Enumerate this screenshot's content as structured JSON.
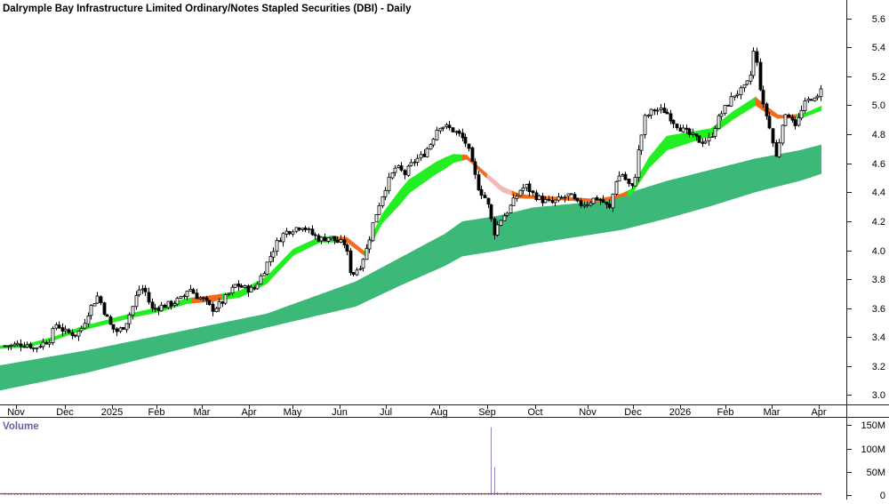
{
  "colors": {
    "background": "#ffffff",
    "axis": "#222222",
    "candle": "#000000",
    "short_ribbon_up": "#22ee22",
    "short_ribbon_down": "#f26a1b",
    "short_ribbon_neutral": "#f4b8b8",
    "long_ribbon": "#3cb878",
    "volume_bar": "#8a8ab8",
    "volume_avg": "#cc2222",
    "volume_label": "#6b5fa8"
  },
  "chart_data": [
    {
      "type": "candlestick",
      "title": "Dalrymple Bay Infrastructure Limited Ordinary/Notes Stapled Securities (DBI) - Daily",
      "ylabel": "",
      "ylim": [
        2.9,
        5.68
      ],
      "yticks": [
        "5.6",
        "5.4",
        "5.2",
        "5.0",
        "4.8",
        "4.6",
        "4.4",
        "4.2",
        "4.0",
        "3.8",
        "3.6",
        "3.4",
        "3.2",
        "3.0"
      ],
      "x_labels": [
        "Nov",
        "Dec",
        "2025",
        "Feb",
        "Mar",
        "Apr",
        "May",
        "Jun",
        "Jul",
        "Aug",
        "Sep",
        "Oct",
        "Nov",
        "Dec",
        "2026",
        "Feb",
        "Mar",
        "Apr"
      ],
      "price_path": [
        [
          0,
          3.32
        ],
        [
          13,
          3.32
        ],
        [
          20,
          3.33
        ],
        [
          32,
          3.33
        ],
        [
          38,
          3.3
        ],
        [
          45,
          3.33
        ],
        [
          55,
          3.36
        ],
        [
          63,
          3.48
        ],
        [
          72,
          3.42
        ],
        [
          85,
          3.4
        ],
        [
          92,
          3.45
        ],
        [
          100,
          3.58
        ],
        [
          110,
          3.68
        ],
        [
          117,
          3.56
        ],
        [
          125,
          3.45
        ],
        [
          132,
          3.42
        ],
        [
          140,
          3.47
        ],
        [
          148,
          3.58
        ],
        [
          155,
          3.72
        ],
        [
          162,
          3.73
        ],
        [
          170,
          3.58
        ],
        [
          180,
          3.6
        ],
        [
          192,
          3.62
        ],
        [
          205,
          3.66
        ],
        [
          212,
          3.74
        ],
        [
          220,
          3.68
        ],
        [
          230,
          3.64
        ],
        [
          238,
          3.58
        ],
        [
          248,
          3.62
        ],
        [
          258,
          3.7
        ],
        [
          265,
          3.76
        ],
        [
          275,
          3.73
        ],
        [
          285,
          3.72
        ],
        [
          295,
          3.84
        ],
        [
          305,
          3.98
        ],
        [
          312,
          4.07
        ],
        [
          320,
          4.13
        ],
        [
          330,
          4.16
        ],
        [
          340,
          4.18
        ],
        [
          350,
          4.12
        ],
        [
          360,
          4.08
        ],
        [
          370,
          4.1
        ],
        [
          380,
          4.06
        ],
        [
          388,
          4.05
        ],
        [
          395,
          3.82
        ],
        [
          405,
          3.9
        ],
        [
          413,
          4.03
        ],
        [
          420,
          4.22
        ],
        [
          428,
          4.37
        ],
        [
          435,
          4.48
        ],
        [
          445,
          4.6
        ],
        [
          455,
          4.55
        ],
        [
          465,
          4.64
        ],
        [
          475,
          4.68
        ],
        [
          485,
          4.78
        ],
        [
          493,
          4.9
        ],
        [
          500,
          4.89
        ],
        [
          510,
          4.86
        ],
        [
          518,
          4.82
        ],
        [
          525,
          4.76
        ],
        [
          532,
          4.58
        ],
        [
          538,
          4.45
        ],
        [
          545,
          4.38
        ],
        [
          550,
          4.3
        ],
        [
          555,
          4.12
        ],
        [
          562,
          4.22
        ],
        [
          570,
          4.28
        ],
        [
          578,
          4.36
        ],
        [
          585,
          4.44
        ],
        [
          592,
          4.46
        ],
        [
          600,
          4.4
        ],
        [
          610,
          4.36
        ],
        [
          620,
          4.34
        ],
        [
          630,
          4.37
        ],
        [
          640,
          4.4
        ],
        [
          650,
          4.33
        ],
        [
          660,
          4.34
        ],
        [
          670,
          4.38
        ],
        [
          680,
          4.34
        ],
        [
          685,
          4.29
        ],
        [
          693,
          4.52
        ],
        [
          700,
          4.55
        ],
        [
          706,
          4.48
        ],
        [
          712,
          4.44
        ],
        [
          718,
          4.72
        ],
        [
          725,
          4.95
        ],
        [
          735,
          5.01
        ],
        [
          748,
          5.0
        ],
        [
          758,
          4.92
        ],
        [
          768,
          4.86
        ],
        [
          778,
          4.82
        ],
        [
          788,
          4.78
        ],
        [
          798,
          4.8
        ],
        [
          808,
          4.95
        ],
        [
          818,
          5.05
        ],
        [
          826,
          5.12
        ],
        [
          835,
          5.15
        ],
        [
          843,
          5.22
        ],
        [
          848,
          5.45
        ],
        [
          852,
          5.3
        ],
        [
          857,
          5.05
        ],
        [
          863,
          4.95
        ],
        [
          868,
          4.8
        ],
        [
          873,
          4.66
        ],
        [
          880,
          4.93
        ],
        [
          888,
          4.98
        ],
        [
          895,
          4.9
        ],
        [
          905,
          5.05
        ],
        [
          912,
          5.1
        ],
        [
          918,
          5.06
        ],
        [
          924,
          5.2
        ]
      ],
      "short_ribbon_path": [
        [
          0,
          3.31
        ],
        [
          30,
          3.32
        ],
        [
          60,
          3.37
        ],
        [
          90,
          3.44
        ],
        [
          120,
          3.49
        ],
        [
          150,
          3.54
        ],
        [
          180,
          3.58
        ],
        [
          210,
          3.64
        ],
        [
          240,
          3.66
        ],
        [
          270,
          3.69
        ],
        [
          300,
          3.79
        ],
        [
          330,
          3.99
        ],
        [
          360,
          4.08
        ],
        [
          390,
          4.08
        ],
        [
          410,
          3.98
        ],
        [
          430,
          4.23
        ],
        [
          460,
          4.46
        ],
        [
          490,
          4.59
        ],
        [
          510,
          4.66
        ],
        [
          525,
          4.67
        ],
        [
          545,
          4.55
        ],
        [
          565,
          4.44
        ],
        [
          585,
          4.39
        ],
        [
          610,
          4.38
        ],
        [
          640,
          4.37
        ],
        [
          670,
          4.36
        ],
        [
          690,
          4.38
        ],
        [
          710,
          4.42
        ],
        [
          730,
          4.63
        ],
        [
          750,
          4.77
        ],
        [
          775,
          4.81
        ],
        [
          800,
          4.85
        ],
        [
          825,
          4.97
        ],
        [
          850,
          5.07
        ],
        [
          860,
          5.02
        ],
        [
          875,
          4.96
        ],
        [
          890,
          4.96
        ],
        [
          905,
          4.97
        ],
        [
          924,
          5.02
        ]
      ],
      "short_ribbon_width": [
        [
          0,
          0.02
        ],
        [
          150,
          0.03
        ],
        [
          300,
          0.05
        ],
        [
          410,
          0.03
        ],
        [
          450,
          0.1
        ],
        [
          500,
          0.08
        ],
        [
          530,
          0.02
        ],
        [
          560,
          0.04
        ],
        [
          600,
          0.02
        ],
        [
          700,
          0.02
        ],
        [
          720,
          0.06
        ],
        [
          750,
          0.1
        ],
        [
          800,
          0.05
        ],
        [
          850,
          0.06
        ],
        [
          880,
          0.02
        ],
        [
          924,
          0.03
        ]
      ],
      "short_ribbon_state": [
        [
          0,
          "up"
        ],
        [
          215,
          "down"
        ],
        [
          250,
          "up"
        ],
        [
          380,
          "down"
        ],
        [
          410,
          "up"
        ],
        [
          520,
          "down"
        ],
        [
          548,
          "neutral"
        ],
        [
          575,
          "down"
        ],
        [
          705,
          "up"
        ],
        [
          850,
          "down"
        ],
        [
          895,
          "up"
        ]
      ],
      "long_ribbon_upper": [
        [
          0,
          3.18
        ],
        [
          100,
          3.29
        ],
        [
          200,
          3.42
        ],
        [
          300,
          3.55
        ],
        [
          400,
          3.78
        ],
        [
          450,
          3.95
        ],
        [
          500,
          4.12
        ],
        [
          520,
          4.21
        ],
        [
          560,
          4.25
        ],
        [
          600,
          4.31
        ],
        [
          650,
          4.34
        ],
        [
          700,
          4.4
        ],
        [
          750,
          4.5
        ],
        [
          800,
          4.58
        ],
        [
          850,
          4.66
        ],
        [
          900,
          4.72
        ],
        [
          924,
          4.76
        ]
      ],
      "long_ribbon_lower": [
        [
          0,
          3.0
        ],
        [
          100,
          3.13
        ],
        [
          200,
          3.29
        ],
        [
          300,
          3.45
        ],
        [
          400,
          3.6
        ],
        [
          450,
          3.75
        ],
        [
          500,
          3.89
        ],
        [
          520,
          3.96
        ],
        [
          560,
          4.0
        ],
        [
          600,
          4.05
        ],
        [
          650,
          4.1
        ],
        [
          700,
          4.15
        ],
        [
          750,
          4.23
        ],
        [
          800,
          4.32
        ],
        [
          850,
          4.42
        ],
        [
          900,
          4.5
        ],
        [
          924,
          4.55
        ]
      ]
    },
    {
      "type": "bar",
      "title": "Volume",
      "ylim": [
        0,
        150
      ],
      "yticks": [
        "150M",
        "100M",
        "50M",
        "0"
      ],
      "spikes": [
        [
          554,
          145
        ],
        [
          556,
          60
        ],
        [
          560,
          6
        ],
        [
          570,
          6
        ],
        [
          590,
          5
        ],
        [
          395,
          3
        ],
        [
          875,
          4
        ]
      ],
      "baseline_level": 2.0
    }
  ]
}
